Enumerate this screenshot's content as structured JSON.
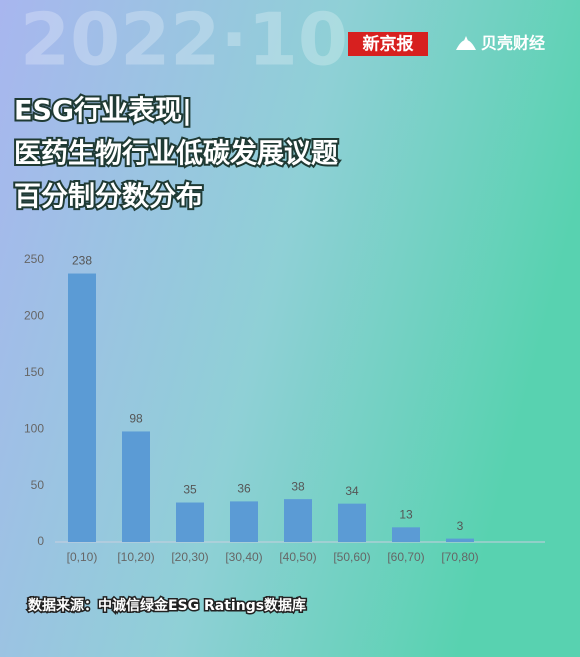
{
  "header": {
    "watermark": "2022·10",
    "brand": "新京报",
    "brand2": "贝壳财经"
  },
  "chart_data": {
    "type": "bar",
    "title": [
      "ESG行业表现|",
      "医药生物行业低碳发展议题",
      "百分制分数分布"
    ],
    "categories": [
      "[0,10)",
      "[10,20)",
      "[20,30)",
      "[30,40)",
      "[40,50)",
      "[50,60)",
      "[60,70)",
      "[70,80)"
    ],
    "values": [
      238,
      98,
      35,
      36,
      38,
      34,
      13,
      3
    ],
    "color": "#5b9bd5",
    "ylim": [
      0,
      250
    ],
    "yticks": [
      0,
      50,
      100,
      150,
      200,
      250
    ],
    "grid": false,
    "source": "数据来源：中诚信绿金ESG Ratings数据库"
  }
}
